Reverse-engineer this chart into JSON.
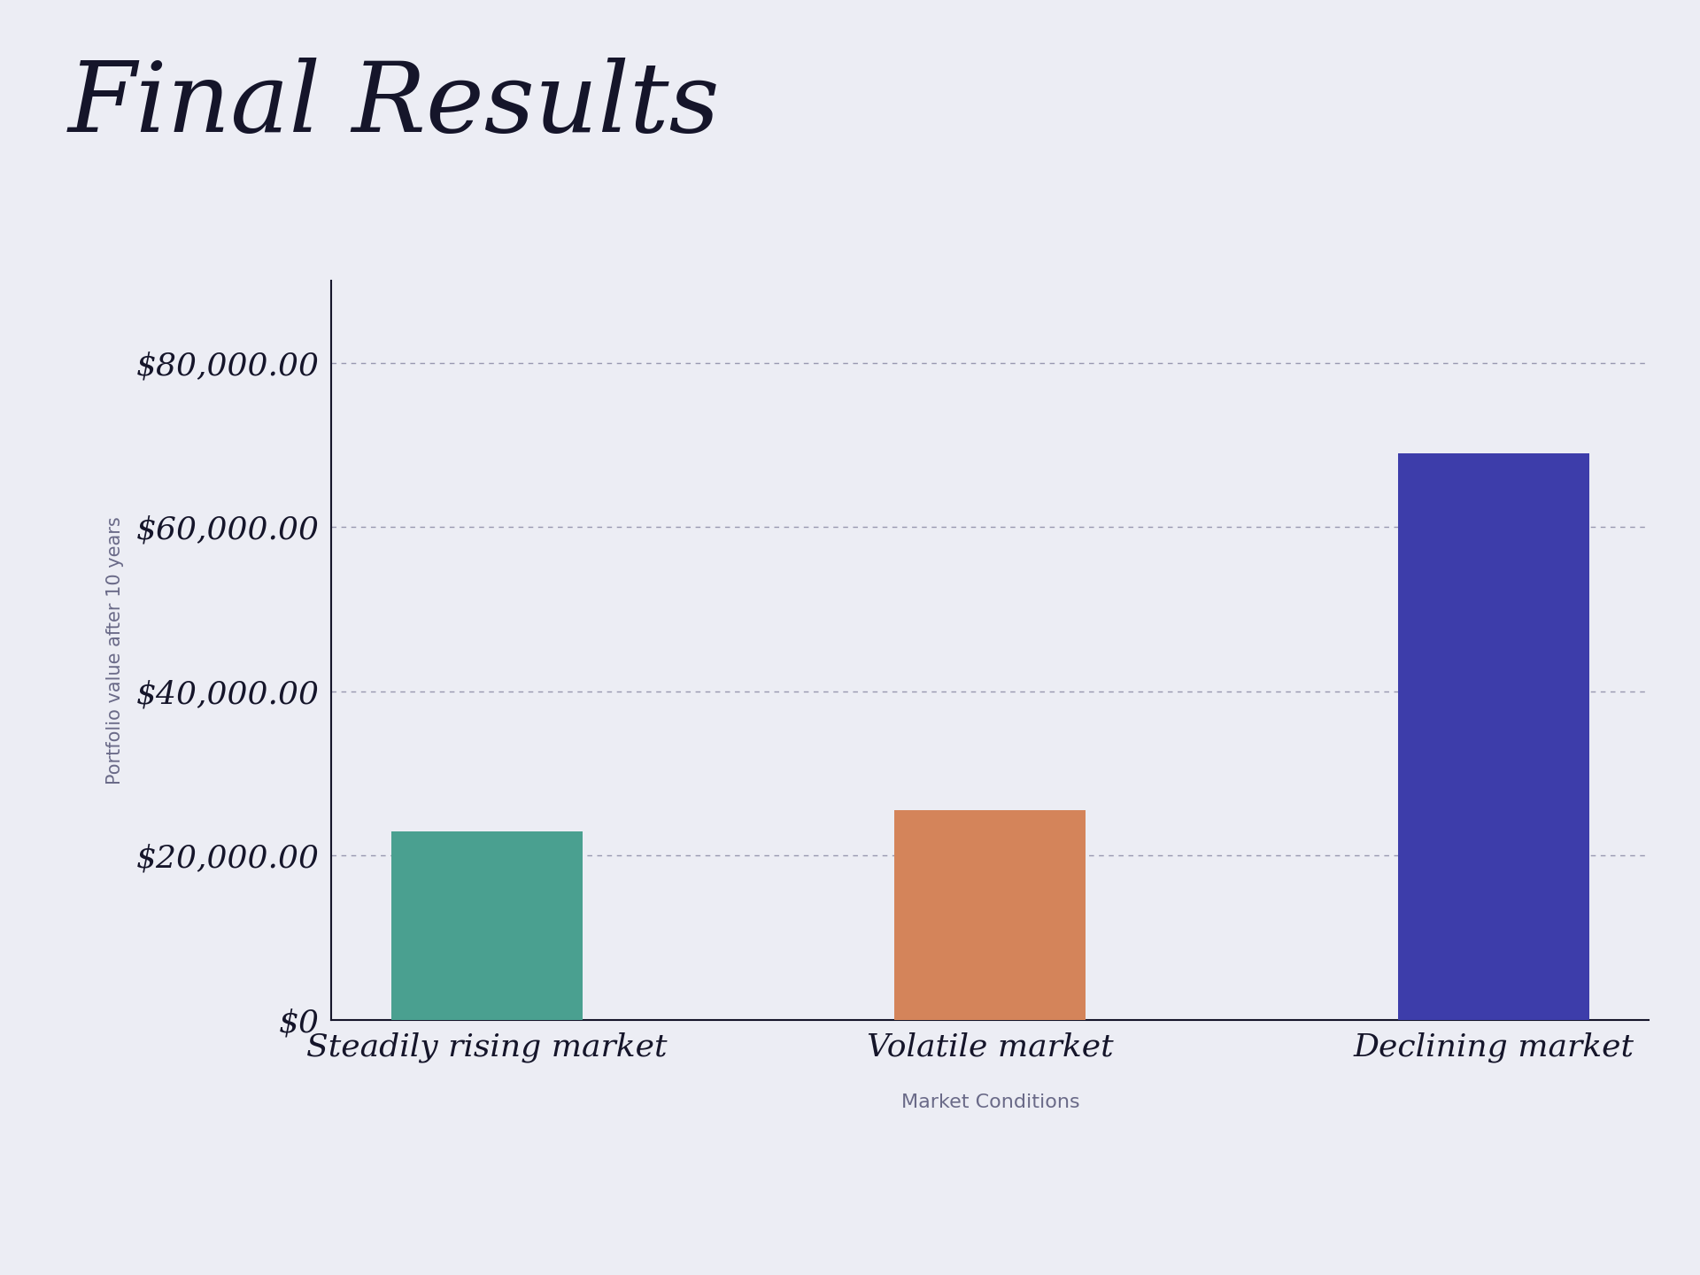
{
  "title": "Final Results",
  "categories": [
    "Steadily rising market",
    "Volatile market",
    "Declining market"
  ],
  "values": [
    23000,
    25500,
    69000
  ],
  "bar_colors": [
    "#4aA090",
    "#D4845A",
    "#3D3DAA"
  ],
  "background_color": "#ECEDF4",
  "ylabel": "Portfolio value after 10 years",
  "xlabel": "Market Conditions",
  "ylim": [
    0,
    90000
  ],
  "yticks": [
    0,
    20000,
    40000,
    60000,
    80000
  ],
  "ytick_labels": [
    "$0",
    "$20,000.00",
    "$40,000.00",
    "$60,000.00",
    "$80,000.00"
  ],
  "title_fontsize": 80,
  "tick_fontsize": 26,
  "ylabel_fontsize": 15,
  "xlabel_fontsize": 16,
  "xtick_fontsize": 26,
  "axis_color": "#15152a",
  "tick_color": "#6a6a88",
  "grid_color": "#9898b0",
  "bar_width": 0.38
}
